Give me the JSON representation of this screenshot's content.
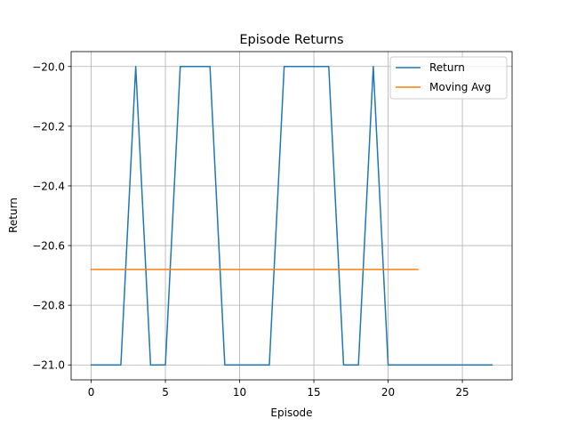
{
  "chart_data": {
    "type": "line",
    "title": "Episode Returns",
    "xlabel": "Episode",
    "ylabel": "Return",
    "xlim": [
      -1.35,
      28.35
    ],
    "ylim": [
      -21.05,
      -19.95
    ],
    "xticks": [
      0,
      5,
      10,
      15,
      20,
      25
    ],
    "xtick_labels": [
      "0",
      "5",
      "10",
      "15",
      "20",
      "25"
    ],
    "yticks": [
      -21.0,
      -20.8,
      -20.6,
      -20.4,
      -20.2,
      -20.0
    ],
    "ytick_labels": [
      "−21.0",
      "−20.8",
      "−20.6",
      "−20.4",
      "−20.2",
      "−20.0"
    ],
    "grid": true,
    "legend_position": "top-right",
    "series": [
      {
        "name": "Return",
        "color": "#1f77b4",
        "x": [
          0,
          1,
          2,
          3,
          4,
          5,
          6,
          7,
          8,
          9,
          10,
          11,
          12,
          13,
          14,
          15,
          16,
          17,
          18,
          19,
          20,
          21,
          22,
          23,
          24,
          25,
          26,
          27
        ],
        "y": [
          -21,
          -21,
          -21,
          -20,
          -21,
          -21,
          -20,
          -20,
          -20,
          -21,
          -21,
          -21,
          -21,
          -20,
          -20,
          -20,
          -20,
          -21,
          -21,
          -20,
          -21,
          -21,
          -21,
          -21,
          -21,
          -21,
          -21,
          -21
        ]
      },
      {
        "name": "Moving Avg",
        "color": "#ff7f0e",
        "x": [
          0,
          22
        ],
        "y": [
          -20.68,
          -20.68
        ]
      }
    ]
  }
}
